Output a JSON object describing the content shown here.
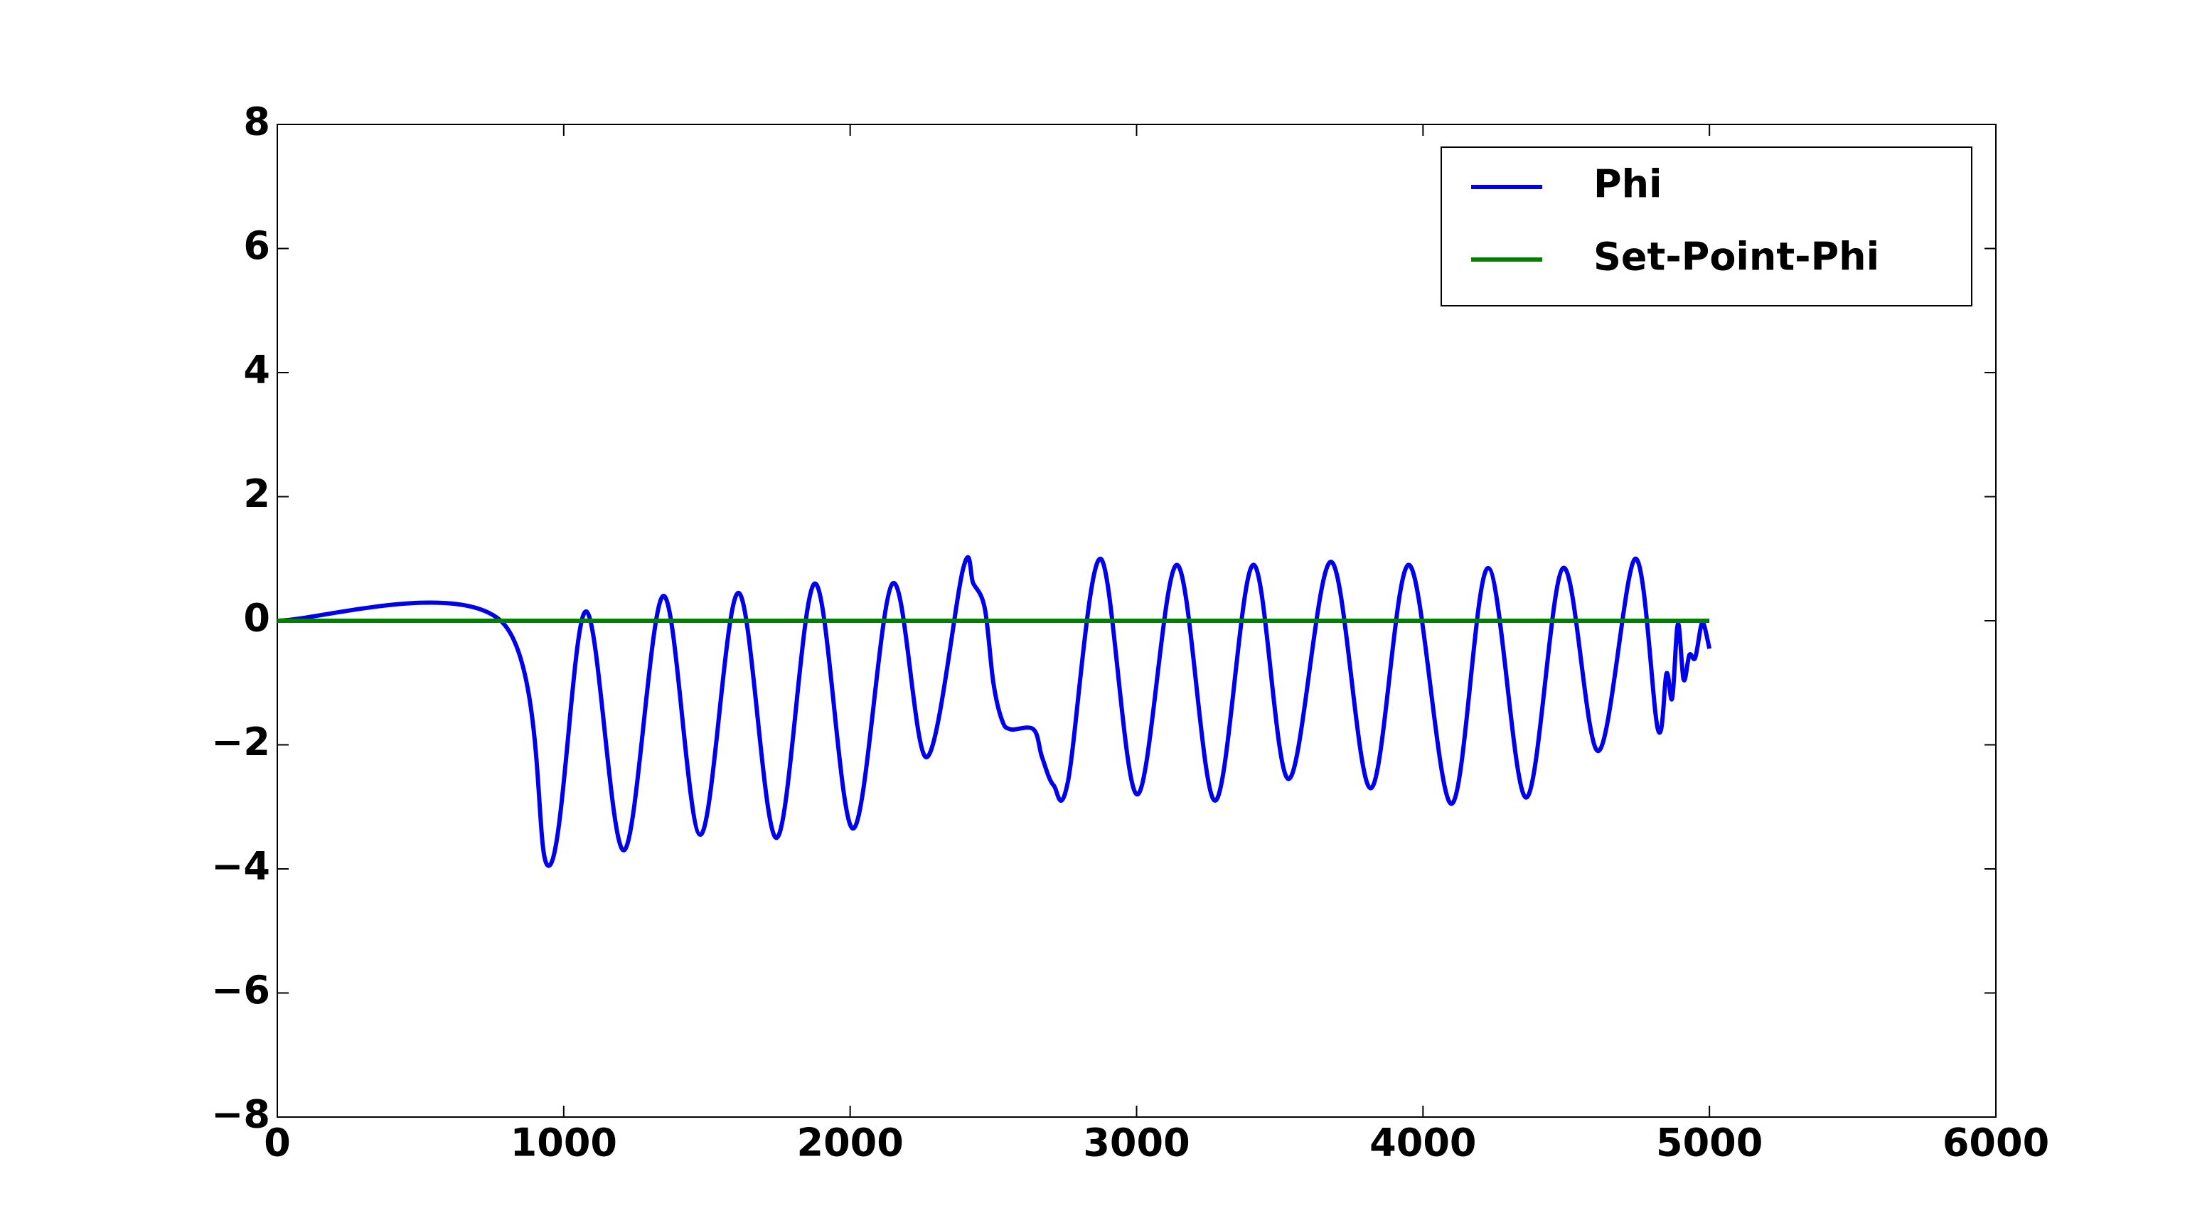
{
  "chart_data": {
    "type": "line",
    "xlim": [
      0,
      6000
    ],
    "xticks": [
      0,
      1000,
      2000,
      3000,
      4000,
      5000,
      6000
    ],
    "ylim": [
      -8,
      8
    ],
    "yticks": [
      {
        "value": -8,
        "label": "−8"
      },
      {
        "value": -6,
        "label": "−6"
      },
      {
        "value": -4,
        "label": "−4"
      },
      {
        "value": -2,
        "label": "−2"
      },
      0,
      2,
      4,
      6,
      8
    ],
    "legend": "upper right",
    "series": [
      {
        "name": "Phi",
        "color": "#0000ee",
        "x": [
          0,
          780,
          948,
          1077,
          1210,
          1348,
          1477,
          1610,
          1743,
          1877,
          2010,
          2148,
          2267,
          2395,
          2430,
          2470,
          2500,
          2530,
          2560,
          2640,
          2670,
          2710,
          2760,
          2874,
          3002,
          3141,
          3274,
          3407,
          3531,
          3679,
          3817,
          3951,
          4099,
          4227,
          4360,
          4489,
          4612,
          4741,
          4820,
          4850,
          4870,
          4890,
          4910,
          4930,
          4950,
          4970,
          4980,
          5000
        ],
        "values": [
          0,
          0,
          -3.95,
          0.15,
          -3.7,
          0.4,
          -3.45,
          0.45,
          -3.5,
          0.6,
          -3.35,
          0.6,
          -2.2,
          0.85,
          0.6,
          0.2,
          -1.0,
          -1.6,
          -1.75,
          -1.75,
          -2.2,
          -2.65,
          -2.6,
          1.0,
          -2.8,
          0.9,
          -2.9,
          0.9,
          -2.55,
          0.95,
          -2.7,
          0.9,
          -2.95,
          0.85,
          -2.85,
          0.85,
          -2.1,
          1.0,
          -1.75,
          -0.85,
          -1.25,
          -0.05,
          -0.95,
          -0.55,
          -0.6,
          -0.1,
          -0.05,
          -0.45
        ]
      },
      {
        "name": "Set-Point-Phi",
        "color": "#007f00",
        "x": [
          0,
          5000
        ],
        "values": [
          0,
          0
        ]
      }
    ]
  }
}
